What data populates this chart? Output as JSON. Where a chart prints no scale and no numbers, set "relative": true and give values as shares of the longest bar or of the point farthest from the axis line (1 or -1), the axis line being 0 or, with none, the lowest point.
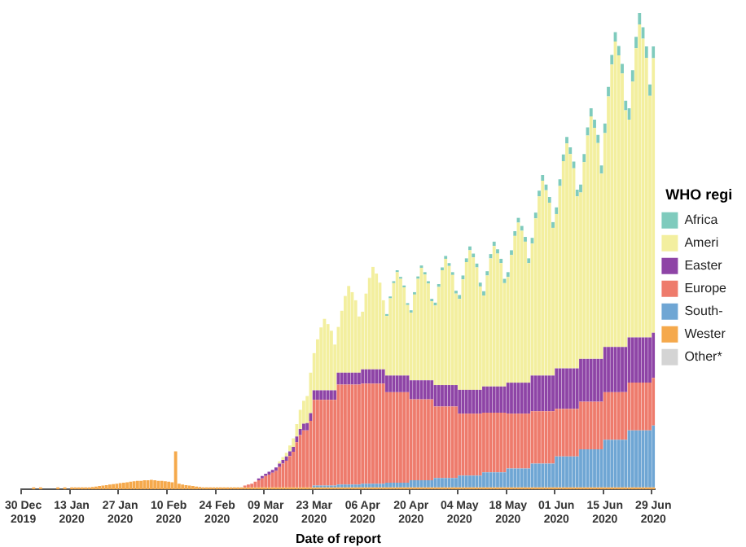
{
  "chart_data": {
    "type": "bar",
    "stacked": true,
    "relative": true,
    "xlabel": "Date of report",
    "legend": "right",
    "legend_title": "WHO regi",
    "categories": [
      "30 Dec 2019",
      null,
      null,
      null,
      null,
      null,
      null,
      null,
      null,
      null,
      null,
      null,
      null,
      null,
      "13 Jan 2020",
      null,
      null,
      null,
      null,
      null,
      null,
      null,
      null,
      null,
      null,
      null,
      null,
      null,
      "27 Jan 2020",
      null,
      null,
      null,
      null,
      null,
      null,
      null,
      null,
      null,
      null,
      null,
      null,
      null,
      "10 Feb 2020",
      null,
      null,
      null,
      null,
      null,
      null,
      null,
      null,
      null,
      null,
      null,
      null,
      null,
      "24 Feb 2020",
      null,
      null,
      null,
      null,
      null,
      null,
      null,
      null,
      null,
      null,
      null,
      null,
      null,
      "09 Mar 2020",
      null,
      null,
      null,
      null,
      null,
      null,
      null,
      null,
      null,
      null,
      null,
      null,
      null,
      "23 Mar 2020",
      null,
      null,
      null,
      null,
      null,
      null,
      null,
      null,
      null,
      null,
      null,
      null,
      null,
      "06 Apr 2020",
      null,
      null,
      null,
      null,
      null,
      null,
      null,
      null,
      null,
      null,
      null,
      null,
      null,
      "20 Apr 2020",
      null,
      null,
      null,
      null,
      null,
      null,
      null,
      null,
      null,
      null,
      null,
      null,
      null,
      "04 May 2020",
      null,
      null,
      null,
      null,
      null,
      null,
      null,
      null,
      null,
      null,
      null,
      null,
      null,
      "18 May 2020",
      null,
      null,
      null,
      null,
      null,
      null,
      null,
      null,
      null,
      null,
      null,
      null,
      null,
      "01 Jun 2020",
      null,
      null,
      null,
      null,
      null,
      null,
      null,
      null,
      null,
      null,
      null,
      null,
      null,
      "15 Jun 2020",
      null,
      null,
      null,
      null,
      null,
      null,
      null,
      null,
      null,
      null,
      null,
      null,
      null,
      "29 Jun 2020"
    ],
    "series": [
      {
        "name": "Other*",
        "color": "#d4d4d4",
        "values": [
          null,
          null,
          null,
          null,
          null,
          null,
          null,
          null,
          null,
          null,
          null,
          null,
          null,
          null,
          null,
          null,
          null,
          null,
          null,
          null,
          null,
          null,
          null,
          null,
          null,
          null,
          null,
          null,
          null,
          null,
          null,
          null,
          null,
          null,
          null,
          null,
          null,
          null,
          null,
          null,
          null,
          null,
          null,
          null,
          null,
          null,
          null,
          null,
          null,
          null,
          null,
          null,
          null,
          null,
          null,
          null,
          null,
          null,
          null,
          null,
          null,
          null,
          null,
          null,
          null,
          null,
          null,
          null,
          null,
          null,
          null,
          null,
          null,
          null,
          null,
          null,
          null,
          null,
          null,
          null,
          null,
          null,
          null,
          null,
          null,
          null,
          null,
          null,
          null,
          null,
          null,
          null,
          null,
          null,
          null,
          null,
          null,
          null,
          null,
          null,
          null,
          null,
          null,
          null,
          null,
          null,
          null,
          null,
          null,
          null,
          null,
          null,
          null,
          null,
          null,
          null,
          null,
          null,
          null,
          null,
          null,
          null,
          null,
          null,
          null,
          null,
          null,
          null,
          null,
          null,
          null,
          null,
          null,
          null,
          null,
          null,
          null,
          null,
          null,
          null,
          null,
          null,
          null,
          null,
          null,
          null,
          null,
          null,
          null,
          null,
          null,
          null,
          null,
          null,
          null,
          null,
          null,
          null,
          null,
          null,
          null,
          null,
          null,
          null,
          null,
          null,
          null,
          null,
          null,
          null,
          null,
          null,
          null,
          null,
          null,
          null,
          null,
          null,
          null,
          null,
          null,
          null,
          null
        ]
      },
      {
        "name": "Wester",
        "color": "#f5a94c",
        "values": [
          null,
          null,
          null,
          0.004,
          null,
          0.004,
          null,
          null,
          null,
          null,
          0.004,
          null,
          0.004,
          null,
          0.004,
          0.004,
          0.004,
          0.004,
          0.004,
          0.004,
          0.005,
          0.006,
          0.007,
          0.008,
          0.009,
          0.01,
          0.011,
          0.012,
          0.013,
          0.014,
          0.015,
          0.016,
          0.017,
          0.018,
          0.018,
          0.019,
          0.019,
          0.02,
          0.019,
          0.018,
          0.018,
          0.017,
          0.016,
          0.015,
          0.08,
          0.012,
          0.01,
          0.009,
          0.008,
          0.007,
          0.006,
          0.005,
          0.004,
          0.004,
          0.004,
          0.004,
          0.004,
          0.004,
          0.004,
          0.004,
          0.004,
          0.004,
          0.004,
          0.004,
          0.004,
          0.004,
          0.004,
          0.004,
          0.004,
          0.004,
          0.004,
          0.004,
          0.004,
          0.004,
          0.004,
          0.004,
          0.004,
          0.004,
          0.004,
          0.004,
          0.004,
          0.004,
          0.004,
          0.004,
          0.004,
          0.004,
          0.004,
          0.004,
          0.004,
          0.004,
          0.004,
          0.004,
          0.004,
          0.004,
          0.004,
          0.004,
          0.004,
          0.004,
          0.004,
          0.004,
          0.004,
          0.004,
          0.004,
          0.004,
          0.004,
          0.004,
          0.004,
          0.004,
          0.004,
          0.004,
          0.004,
          0.004,
          0.004,
          0.004,
          0.004,
          0.004,
          0.004,
          0.004,
          0.004,
          0.004,
          0.004,
          0.004,
          0.004,
          0.004,
          0.004,
          0.004,
          0.004,
          0.004,
          0.004,
          0.004,
          0.004,
          0.004,
          0.004,
          0.004,
          0.004,
          0.004,
          0.004,
          0.004,
          0.004,
          0.004,
          0.004,
          0.004,
          0.004,
          0.004,
          0.004,
          0.004,
          0.004,
          0.004,
          0.004,
          0.004,
          0.004,
          0.004,
          0.004,
          0.004,
          0.004,
          0.004,
          0.004,
          0.004,
          0.004,
          0.004,
          0.004,
          0.004,
          0.004,
          0.004,
          0.004,
          0.004,
          0.004,
          0.004,
          0.004,
          0.004,
          0.004,
          0.004,
          0.004,
          0.004,
          0.004,
          0.004,
          0.004,
          0.004,
          0.004,
          0.004,
          0.004,
          0.004,
          0.004
        ]
      },
      {
        "name": "South-",
        "color": "#6fa6d4",
        "values": [
          null,
          null,
          null,
          null,
          null,
          null,
          null,
          null,
          null,
          null,
          null,
          null,
          null,
          null,
          null,
          null,
          null,
          null,
          null,
          null,
          null,
          null,
          null,
          null,
          null,
          null,
          null,
          null,
          null,
          null,
          null,
          null,
          null,
          null,
          null,
          null,
          null,
          null,
          null,
          null,
          null,
          null,
          null,
          null,
          null,
          null,
          null,
          null,
          null,
          null,
          null,
          null,
          null,
          null,
          null,
          null,
          null,
          null,
          null,
          null,
          null,
          null,
          null,
          null,
          null,
          null,
          null,
          null,
          null,
          null,
          null,
          null,
          null,
          null,
          null,
          null,
          null,
          null,
          null,
          null,
          null,
          null,
          null,
          null,
          0.004,
          0.004,
          0.004,
          0.004,
          0.004,
          0.004,
          0.004,
          0.006,
          0.006,
          0.006,
          0.006,
          0.006,
          0.006,
          0.006,
          0.008,
          0.008,
          0.008,
          0.008,
          0.008,
          0.008,
          0.008,
          0.01,
          0.01,
          0.01,
          0.01,
          0.01,
          0.01,
          0.01,
          0.015,
          0.015,
          0.015,
          0.015,
          0.015,
          0.015,
          0.015,
          0.02,
          0.02,
          0.02,
          0.02,
          0.02,
          0.02,
          0.02,
          0.025,
          0.025,
          0.025,
          0.025,
          0.025,
          0.025,
          0.025,
          0.032,
          0.032,
          0.032,
          0.032,
          0.032,
          0.032,
          0.032,
          0.04,
          0.04,
          0.04,
          0.04,
          0.04,
          0.04,
          0.04,
          0.05,
          0.05,
          0.05,
          0.05,
          0.05,
          0.05,
          0.05,
          0.065,
          0.065,
          0.065,
          0.065,
          0.065,
          0.065,
          0.065,
          0.08,
          0.08,
          0.08,
          0.08,
          0.08,
          0.08,
          0.08,
          0.1,
          0.1,
          0.1,
          0.1,
          0.1,
          0.1,
          0.1,
          0.12,
          0.12,
          0.12,
          0.12,
          0.12,
          0.12,
          0.12,
          0.13
        ]
      },
      {
        "name": "Europe",
        "color": "#ee7b6c",
        "values": [
          null,
          null,
          null,
          null,
          null,
          null,
          null,
          null,
          null,
          null,
          null,
          null,
          null,
          null,
          null,
          null,
          null,
          null,
          null,
          null,
          null,
          null,
          null,
          null,
          null,
          null,
          null,
          null,
          null,
          null,
          null,
          null,
          null,
          null,
          null,
          null,
          null,
          null,
          null,
          null,
          null,
          null,
          null,
          null,
          null,
          null,
          null,
          null,
          null,
          null,
          null,
          null,
          null,
          null,
          null,
          null,
          null,
          null,
          null,
          null,
          null,
          null,
          null,
          null,
          0.004,
          0.006,
          0.008,
          0.012,
          0.015,
          0.019,
          0.024,
          0.027,
          0.031,
          0.035,
          0.043,
          0.05,
          0.056,
          0.066,
          0.075,
          0.095,
          0.11,
          0.12,
          0.12,
          0.14,
          0.18,
          0.18,
          0.18,
          0.18,
          0.18,
          0.18,
          0.18,
          0.21,
          0.21,
          0.21,
          0.21,
          0.21,
          0.21,
          0.21,
          0.21,
          0.21,
          0.21,
          0.21,
          0.21,
          0.21,
          0.21,
          0.19,
          0.19,
          0.19,
          0.19,
          0.19,
          0.19,
          0.19,
          0.17,
          0.17,
          0.17,
          0.17,
          0.17,
          0.17,
          0.17,
          0.15,
          0.15,
          0.15,
          0.15,
          0.15,
          0.15,
          0.15,
          0.13,
          0.13,
          0.13,
          0.13,
          0.13,
          0.13,
          0.13,
          0.125,
          0.125,
          0.125,
          0.125,
          0.125,
          0.125,
          0.125,
          0.115,
          0.115,
          0.115,
          0.115,
          0.115,
          0.115,
          0.115,
          0.11,
          0.11,
          0.11,
          0.11,
          0.11,
          0.11,
          0.11,
          0.1,
          0.1,
          0.1,
          0.1,
          0.1,
          0.1,
          0.1,
          0.1,
          0.1,
          0.1,
          0.1,
          0.1,
          0.1,
          0.1,
          0.1,
          0.1,
          0.1,
          0.1,
          0.1,
          0.1,
          0.1,
          0.1,
          0.1,
          0.1,
          0.1,
          0.1,
          0.1,
          0.1,
          0.1
        ]
      },
      {
        "name": "Easter",
        "color": "#8e44a6",
        "values": [
          null,
          null,
          null,
          null,
          null,
          null,
          null,
          null,
          null,
          null,
          null,
          null,
          null,
          null,
          null,
          null,
          null,
          null,
          null,
          null,
          null,
          null,
          null,
          null,
          null,
          null,
          null,
          null,
          null,
          null,
          null,
          null,
          null,
          null,
          null,
          null,
          null,
          null,
          null,
          null,
          null,
          null,
          null,
          null,
          null,
          null,
          null,
          null,
          null,
          null,
          null,
          null,
          null,
          null,
          null,
          null,
          null,
          null,
          null,
          null,
          null,
          null,
          null,
          null,
          null,
          null,
          null,
          null,
          0.004,
          0.005,
          0.005,
          0.006,
          0.006,
          0.007,
          0.007,
          0.008,
          0.009,
          0.01,
          0.01,
          0.012,
          0.013,
          0.014,
          0.015,
          0.016,
          0.02,
          0.02,
          0.02,
          0.02,
          0.02,
          0.02,
          0.02,
          0.025,
          0.025,
          0.025,
          0.025,
          0.025,
          0.025,
          0.025,
          0.03,
          0.03,
          0.03,
          0.03,
          0.03,
          0.03,
          0.03,
          0.035,
          0.035,
          0.035,
          0.035,
          0.035,
          0.035,
          0.035,
          0.04,
          0.04,
          0.04,
          0.04,
          0.04,
          0.04,
          0.04,
          0.045,
          0.045,
          0.045,
          0.045,
          0.045,
          0.045,
          0.045,
          0.05,
          0.05,
          0.05,
          0.05,
          0.05,
          0.05,
          0.05,
          0.055,
          0.055,
          0.055,
          0.055,
          0.055,
          0.055,
          0.055,
          0.065,
          0.065,
          0.065,
          0.065,
          0.065,
          0.065,
          0.065,
          0.075,
          0.075,
          0.075,
          0.075,
          0.075,
          0.075,
          0.075,
          0.085,
          0.085,
          0.085,
          0.085,
          0.085,
          0.085,
          0.085,
          0.09,
          0.09,
          0.09,
          0.09,
          0.09,
          0.09,
          0.09,
          0.095,
          0.095,
          0.095,
          0.095,
          0.095,
          0.095,
          0.095,
          0.095,
          0.095,
          0.095,
          0.095,
          0.095,
          0.095,
          0.095,
          0.095
        ]
      },
      {
        "name": "Ameri",
        "color": "#f3ef9f",
        "values": [
          null,
          null,
          null,
          null,
          null,
          null,
          null,
          null,
          null,
          null,
          null,
          null,
          null,
          null,
          null,
          null,
          null,
          null,
          null,
          null,
          null,
          null,
          null,
          null,
          null,
          null,
          null,
          null,
          null,
          null,
          null,
          null,
          null,
          null,
          null,
          null,
          null,
          null,
          null,
          null,
          null,
          null,
          null,
          null,
          null,
          null,
          null,
          null,
          null,
          null,
          null,
          null,
          null,
          null,
          null,
          null,
          null,
          null,
          null,
          null,
          null,
          null,
          null,
          null,
          null,
          null,
          null,
          null,
          null,
          null,
          null,
          null,
          null,
          null,
          0.005,
          0.006,
          0.008,
          0.012,
          0.018,
          0.026,
          0.04,
          0.048,
          0.057,
          0.085,
          0.078,
          0.107,
          0.132,
          0.15,
          0.139,
          0.125,
          0.096,
          0.096,
          0.13,
          0.161,
          0.182,
          0.169,
          0.152,
          0.118,
          0.121,
          0.159,
          0.192,
          0.215,
          0.201,
          0.182,
          0.145,
          0.125,
          0.162,
          0.194,
          0.217,
          0.203,
          0.185,
          0.148,
          0.142,
          0.18,
          0.213,
          0.236,
          0.222,
          0.203,
          0.166,
          0.167,
          0.206,
          0.241,
          0.265,
          0.25,
          0.231,
          0.192,
          0.191,
          0.232,
          0.268,
          0.293,
          0.278,
          0.257,
          0.217,
          0.191,
          0.233,
          0.269,
          0.295,
          0.279,
          0.259,
          0.217,
          0.222,
          0.268,
          0.308,
          0.336,
          0.319,
          0.296,
          0.251,
          0.277,
          0.33,
          0.376,
          0.409,
          0.389,
          0.363,
          0.31,
          0.324,
          0.383,
          0.435,
          0.472,
          0.45,
          0.42,
          0.361,
          0.349,
          0.413,
          0.469,
          0.509,
          0.485,
          0.453,
          0.389,
          0.449,
          0.526,
          0.593,
          0.641,
          0.612,
          0.574,
          0.497,
          0.457,
          0.537,
          0.607,
          0.657,
          0.627,
          0.587,
          0.507,
          0.576
        ]
      },
      {
        "name": "Africa",
        "color": "#7fcbbd",
        "values": [
          null,
          null,
          null,
          null,
          null,
          null,
          null,
          null,
          null,
          null,
          null,
          null,
          null,
          null,
          null,
          null,
          null,
          null,
          null,
          null,
          null,
          null,
          null,
          null,
          null,
          null,
          null,
          null,
          null,
          null,
          null,
          null,
          null,
          null,
          null,
          null,
          null,
          null,
          null,
          null,
          null,
          null,
          null,
          null,
          null,
          null,
          null,
          null,
          null,
          null,
          null,
          null,
          null,
          null,
          null,
          null,
          null,
          null,
          null,
          null,
          null,
          null,
          null,
          null,
          null,
          null,
          null,
          null,
          null,
          null,
          null,
          null,
          null,
          null,
          null,
          null,
          null,
          null,
          null,
          null,
          null,
          null,
          null,
          null,
          null,
          null,
          null,
          null,
          null,
          null,
          null,
          null,
          null,
          null,
          null,
          null,
          null,
          null,
          null,
          null,
          null,
          null,
          null,
          null,
          null,
          0.004,
          0.004,
          0.004,
          0.004,
          0.004,
          0.004,
          0.004,
          0.005,
          0.005,
          0.005,
          0.005,
          0.005,
          0.005,
          0.005,
          0.006,
          0.006,
          0.006,
          0.006,
          0.006,
          0.006,
          0.006,
          0.008,
          0.008,
          0.008,
          0.008,
          0.008,
          0.008,
          0.008,
          0.009,
          0.009,
          0.009,
          0.009,
          0.009,
          0.009,
          0.009,
          0.01,
          0.01,
          0.01,
          0.01,
          0.01,
          0.01,
          0.01,
          0.012,
          0.012,
          0.012,
          0.012,
          0.012,
          0.012,
          0.012,
          0.014,
          0.014,
          0.014,
          0.014,
          0.014,
          0.014,
          0.014,
          0.017,
          0.017,
          0.017,
          0.017,
          0.017,
          0.017,
          0.017,
          0.02,
          0.02,
          0.02,
          0.02,
          0.02,
          0.02,
          0.02,
          0.024,
          0.024,
          0.024,
          0.024,
          0.024,
          0.024,
          0.024,
          0.025
        ]
      }
    ]
  }
}
